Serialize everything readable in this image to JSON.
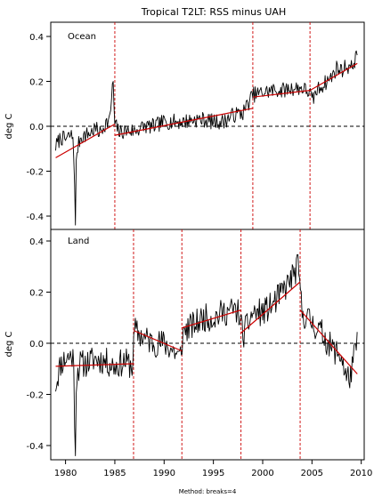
{
  "chart_data": [
    {
      "type": "line",
      "title": "Tropical T2LT: RSS minus UAH",
      "panel_label": "Ocean",
      "ylabel": "deg C",
      "xlabel": "",
      "xlim": [
        1978.5,
        2010.3
      ],
      "ylim": [
        -0.45,
        0.45
      ],
      "yticks": [
        -0.4,
        -0.2,
        0.0,
        0.2,
        0.4
      ],
      "ytick_labels": [
        "-0.4",
        "-0.2",
        "0.0",
        "0.2",
        "0.4"
      ],
      "zero_line": {
        "y": 0,
        "style": "dashed",
        "color": "#000000"
      },
      "breaks": [
        1985.0,
        1999.0,
        2004.8
      ],
      "break_color": "#cc0000",
      "fit_color": "#cc0000",
      "series_color": "#000000",
      "fit_segments": [
        {
          "x": [
            1979.0,
            1985.0
          ],
          "y": [
            -0.14,
            0.01
          ]
        },
        {
          "x": [
            1985.0,
            1999.0
          ],
          "y": [
            -0.04,
            0.08
          ]
        },
        {
          "x": [
            1999.0,
            2004.8
          ],
          "y": [
            0.13,
            0.16
          ]
        },
        {
          "x": [
            2004.8,
            2009.6
          ],
          "y": [
            0.16,
            0.28
          ]
        }
      ],
      "anchors": [
        [
          1979.0,
          -0.09
        ],
        [
          1979.5,
          -0.05
        ],
        [
          1980.0,
          -0.06
        ],
        [
          1980.5,
          -0.04
        ],
        [
          1980.8,
          -0.05
        ],
        [
          1981.0,
          -0.44
        ],
        [
          1981.1,
          -0.12
        ],
        [
          1981.5,
          -0.05
        ],
        [
          1982.0,
          -0.04
        ],
        [
          1982.5,
          -0.03
        ],
        [
          1983.0,
          -0.01
        ],
        [
          1983.5,
          -0.03
        ],
        [
          1984.0,
          0.01
        ],
        [
          1984.5,
          0.03
        ],
        [
          1984.8,
          0.21
        ],
        [
          1985.0,
          0.01
        ],
        [
          1985.5,
          -0.03
        ],
        [
          1986.0,
          -0.02
        ],
        [
          1987.0,
          -0.02
        ],
        [
          1988.0,
          0.0
        ],
        [
          1989.0,
          0.0
        ],
        [
          1990.0,
          0.02
        ],
        [
          1991.0,
          0.02
        ],
        [
          1992.0,
          0.02
        ],
        [
          1993.0,
          0.03
        ],
        [
          1994.0,
          0.03
        ],
        [
          1995.0,
          0.02
        ],
        [
          1996.0,
          0.02
        ],
        [
          1997.0,
          0.05
        ],
        [
          1998.0,
          0.06
        ],
        [
          1999.0,
          0.14
        ],
        [
          2000.0,
          0.15
        ],
        [
          2001.0,
          0.16
        ],
        [
          2002.0,
          0.16
        ],
        [
          2003.0,
          0.17
        ],
        [
          2004.0,
          0.17
        ],
        [
          2004.8,
          0.15
        ],
        [
          2005.0,
          0.11
        ],
        [
          2005.5,
          0.16
        ],
        [
          2006.0,
          0.18
        ],
        [
          2006.5,
          0.2
        ],
        [
          2007.0,
          0.22
        ],
        [
          2007.5,
          0.26
        ],
        [
          2008.0,
          0.25
        ],
        [
          2008.5,
          0.27
        ],
        [
          2009.0,
          0.26
        ],
        [
          2009.6,
          0.32
        ]
      ],
      "noise": 0.035,
      "seed": 7
    },
    {
      "type": "line",
      "title": "",
      "panel_label": "Land",
      "ylabel": "deg C",
      "xlabel": "Method: breaks=4",
      "xlim": [
        1978.5,
        2010.3
      ],
      "ylim": [
        -0.45,
        0.45
      ],
      "xticks": [
        1980,
        1985,
        1990,
        1995,
        2000,
        2005,
        2010
      ],
      "xtick_labels": [
        "1980",
        "1985",
        "1990",
        "1995",
        "2000",
        "2005",
        "2010"
      ],
      "yticks": [
        -0.4,
        -0.2,
        0.0,
        0.2,
        0.4
      ],
      "ytick_labels": [
        "-0.4",
        "-0.2",
        "0.0",
        "0.2",
        "0.4"
      ],
      "zero_line": {
        "y": 0,
        "style": "dashed",
        "color": "#000000"
      },
      "breaks": [
        1986.9,
        1991.8,
        1997.8,
        2003.8
      ],
      "break_color": "#cc0000",
      "fit_color": "#cc0000",
      "series_color": "#000000",
      "fit_segments": [
        {
          "x": [
            1979.0,
            1986.9
          ],
          "y": [
            -0.09,
            -0.08
          ]
        },
        {
          "x": [
            1986.9,
            1991.8
          ],
          "y": [
            0.05,
            -0.03
          ]
        },
        {
          "x": [
            1991.8,
            1997.8
          ],
          "y": [
            0.06,
            0.13
          ]
        },
        {
          "x": [
            1997.8,
            2003.8
          ],
          "y": [
            0.04,
            0.24
          ]
        },
        {
          "x": [
            2003.8,
            2009.6
          ],
          "y": [
            0.13,
            -0.12
          ]
        }
      ],
      "anchors": [
        [
          1979.0,
          -0.16
        ],
        [
          1979.5,
          -0.08
        ],
        [
          1980.0,
          -0.06
        ],
        [
          1980.5,
          -0.05
        ],
        [
          1980.8,
          -0.05
        ],
        [
          1981.0,
          -0.44
        ],
        [
          1981.1,
          -0.12
        ],
        [
          1981.5,
          -0.08
        ],
        [
          1982.0,
          -0.08
        ],
        [
          1983.0,
          -0.06
        ],
        [
          1984.0,
          -0.07
        ],
        [
          1985.0,
          -0.09
        ],
        [
          1986.0,
          -0.07
        ],
        [
          1986.8,
          -0.09
        ],
        [
          1987.0,
          0.05
        ],
        [
          1988.0,
          0.02
        ],
        [
          1989.0,
          0.0
        ],
        [
          1990.0,
          0.0
        ],
        [
          1991.0,
          -0.03
        ],
        [
          1991.6,
          -0.06
        ],
        [
          1992.0,
          0.05
        ],
        [
          1993.0,
          0.07
        ],
        [
          1994.0,
          0.1
        ],
        [
          1995.0,
          0.1
        ],
        [
          1996.0,
          0.12
        ],
        [
          1997.0,
          0.13
        ],
        [
          1997.6,
          0.12
        ],
        [
          1998.0,
          0.03
        ],
        [
          1999.0,
          0.12
        ],
        [
          2000.0,
          0.12
        ],
        [
          2001.0,
          0.15
        ],
        [
          2002.0,
          0.2
        ],
        [
          2003.0,
          0.26
        ],
        [
          2003.6,
          0.3
        ],
        [
          2004.0,
          0.12
        ],
        [
          2005.0,
          0.08
        ],
        [
          2006.0,
          0.04
        ],
        [
          2007.0,
          -0.02
        ],
        [
          2008.0,
          -0.05
        ],
        [
          2008.5,
          -0.14
        ],
        [
          2009.0,
          -0.12
        ],
        [
          2009.6,
          0.02
        ]
      ],
      "noise": 0.055,
      "seed": 11
    }
  ]
}
